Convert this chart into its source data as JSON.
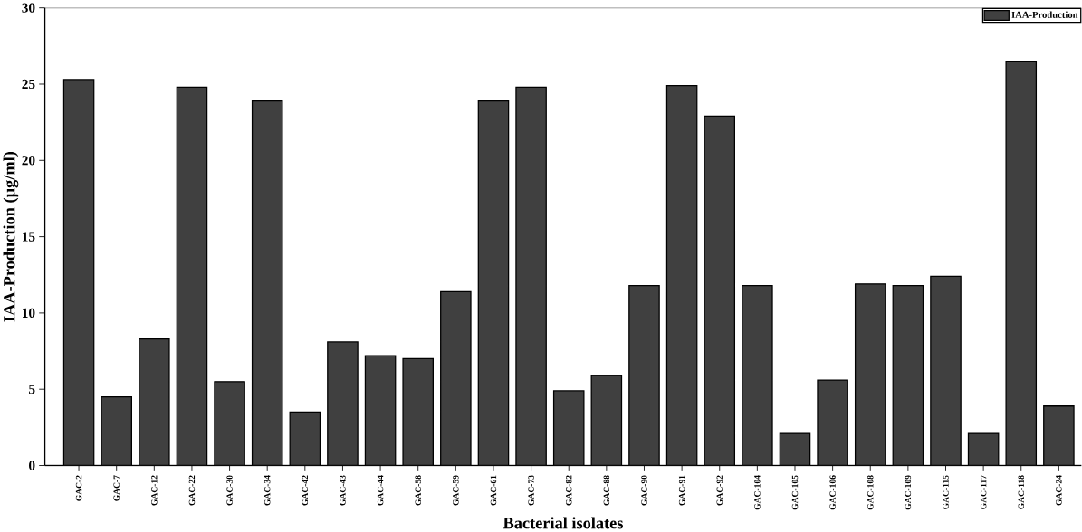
{
  "chart_data": {
    "type": "bar",
    "xlabel": "Bacterial isolates",
    "ylabel": "IAA-Production (µg/ml)",
    "categories": [
      "GAC-2",
      "GAC-7",
      "GAC-12",
      "GAC-22",
      "GAC-30",
      "GAC-34",
      "GAC-42",
      "GAC-43",
      "GAC-44",
      "GAC-58",
      "GAC-59",
      "GAC-61",
      "GAC-73",
      "GAC-82",
      "GAC-88",
      "GAC-90",
      "GAC-91",
      "GAC-92",
      "GAC-104",
      "GAC-105",
      "GAC-106",
      "GAC-108",
      "GAC-109",
      "GAC-115",
      "GAC-117",
      "GAC-118",
      "GAC-24"
    ],
    "series": [
      {
        "name": "IAA-Production",
        "color": "#404040",
        "values": [
          25.3,
          4.5,
          8.3,
          24.8,
          5.5,
          23.9,
          3.5,
          8.1,
          7.2,
          7.0,
          11.4,
          23.9,
          24.8,
          4.9,
          5.9,
          11.8,
          24.9,
          22.9,
          11.8,
          2.1,
          5.6,
          11.9,
          11.8,
          12.4,
          2.1,
          26.5,
          3.9
        ]
      }
    ],
    "ylim": [
      0,
      30
    ],
    "yticks": [
      0,
      5,
      10,
      15,
      20,
      25,
      30
    ],
    "legend": "top right",
    "grid": false
  }
}
